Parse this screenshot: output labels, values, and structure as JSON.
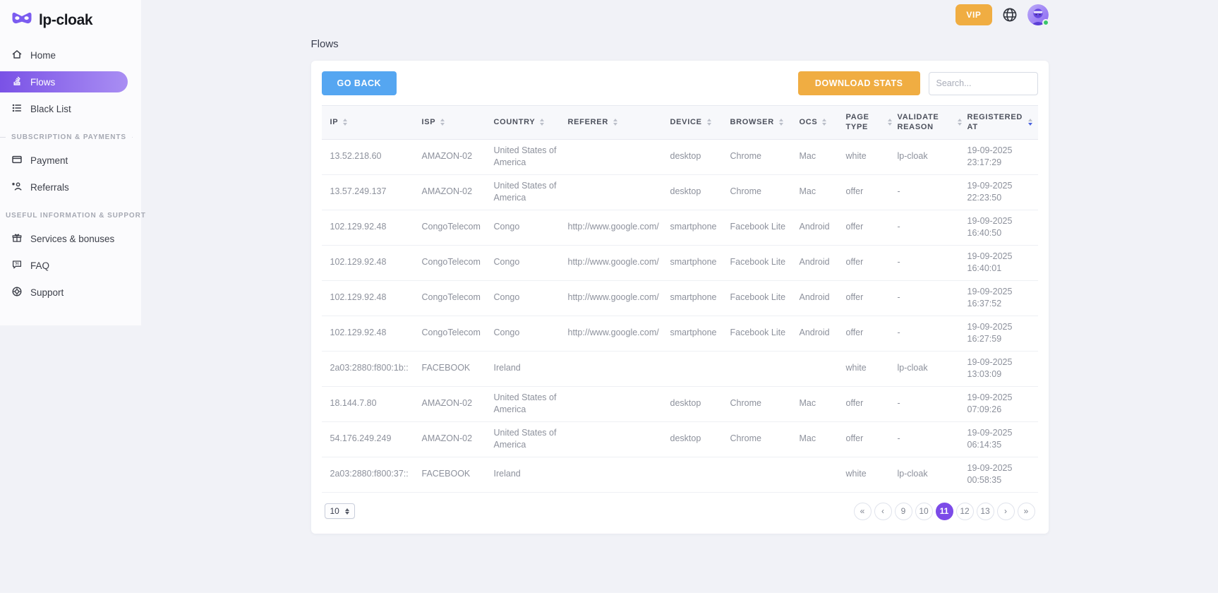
{
  "app": {
    "name": "lp-cloak"
  },
  "topbar": {
    "vip_label": "VIP",
    "avatar_status": "online"
  },
  "sidebar": {
    "items": [
      {
        "label": "Home",
        "icon": "home-icon",
        "active": false
      },
      {
        "label": "Flows",
        "icon": "flows-stack-icon",
        "active": true
      },
      {
        "label": "Black List",
        "icon": "black-list-icon",
        "active": false
      }
    ],
    "sections": [
      {
        "title": "SUBSCRIPTION & PAYMENTS",
        "items": [
          {
            "label": "Payment",
            "icon": "payment-card-icon"
          },
          {
            "label": "Referrals",
            "icon": "referrals-person-icon"
          }
        ]
      },
      {
        "title": "USEFUL INFORMATION & SUPPORT",
        "items": [
          {
            "label": "Services & bonuses",
            "icon": "gift-icon"
          },
          {
            "label": "FAQ",
            "icon": "faq-bubble-icon"
          },
          {
            "label": "Support",
            "icon": "lifebuoy-icon"
          }
        ]
      }
    ]
  },
  "page": {
    "title": "Flows"
  },
  "toolbar": {
    "go_back_label": "GO BACK",
    "download_stats_label": "DOWNLOAD STATS",
    "search_placeholder": "Search..."
  },
  "table": {
    "columns": [
      {
        "key": "ip",
        "label": "IP",
        "sort": "none"
      },
      {
        "key": "isp",
        "label": "ISP",
        "sort": "none"
      },
      {
        "key": "country",
        "label": "COUNTRY",
        "sort": "none"
      },
      {
        "key": "referer",
        "label": "REFERER",
        "sort": "none"
      },
      {
        "key": "device",
        "label": "DEVICE",
        "sort": "none"
      },
      {
        "key": "browser",
        "label": "BROWSER",
        "sort": "none"
      },
      {
        "key": "ocs",
        "label": "OCS",
        "sort": "none"
      },
      {
        "key": "page_type",
        "label": "PAGE TYPE",
        "sort": "none"
      },
      {
        "key": "validate_reason",
        "label": "VALIDATE REASON",
        "sort": "none"
      },
      {
        "key": "registered_at",
        "label": "REGISTERED AT",
        "sort": "desc"
      }
    ],
    "rows": [
      {
        "ip": "13.52.218.60",
        "isp": "AMAZON-02",
        "country": "United States of America",
        "referer": "",
        "device": "desktop",
        "browser": "Chrome",
        "ocs": "Mac",
        "page_type": "white",
        "validate_reason": "lp-cloak",
        "date": "19-09-2025",
        "time": "23:17:29"
      },
      {
        "ip": "13.57.249.137",
        "isp": "AMAZON-02",
        "country": "United States of America",
        "referer": "",
        "device": "desktop",
        "browser": "Chrome",
        "ocs": "Mac",
        "page_type": "offer",
        "validate_reason": "-",
        "date": "19-09-2025",
        "time": "22:23:50"
      },
      {
        "ip": "102.129.92.48",
        "isp": "CongoTelecom",
        "country": "Congo",
        "referer": "http://www.google.com/",
        "device": "smartphone",
        "browser": "Facebook Lite",
        "ocs": "Android",
        "page_type": "offer",
        "validate_reason": "-",
        "date": "19-09-2025",
        "time": "16:40:50"
      },
      {
        "ip": "102.129.92.48",
        "isp": "CongoTelecom",
        "country": "Congo",
        "referer": "http://www.google.com/",
        "device": "smartphone",
        "browser": "Facebook Lite",
        "ocs": "Android",
        "page_type": "offer",
        "validate_reason": "-",
        "date": "19-09-2025",
        "time": "16:40:01"
      },
      {
        "ip": "102.129.92.48",
        "isp": "CongoTelecom",
        "country": "Congo",
        "referer": "http://www.google.com/",
        "device": "smartphone",
        "browser": "Facebook Lite",
        "ocs": "Android",
        "page_type": "offer",
        "validate_reason": "-",
        "date": "19-09-2025",
        "time": "16:37:52"
      },
      {
        "ip": "102.129.92.48",
        "isp": "CongoTelecom",
        "country": "Congo",
        "referer": "http://www.google.com/",
        "device": "smartphone",
        "browser": "Facebook Lite",
        "ocs": "Android",
        "page_type": "offer",
        "validate_reason": "-",
        "date": "19-09-2025",
        "time": "16:27:59"
      },
      {
        "ip": "2a03:2880:f800:1b::",
        "isp": "FACEBOOK",
        "country": "Ireland",
        "referer": "",
        "device": "",
        "browser": "",
        "ocs": "",
        "page_type": "white",
        "validate_reason": "lp-cloak",
        "date": "19-09-2025",
        "time": "13:03:09"
      },
      {
        "ip": "18.144.7.80",
        "isp": "AMAZON-02",
        "country": "United States of America",
        "referer": "",
        "device": "desktop",
        "browser": "Chrome",
        "ocs": "Mac",
        "page_type": "offer",
        "validate_reason": "-",
        "date": "19-09-2025",
        "time": "07:09:26"
      },
      {
        "ip": "54.176.249.249",
        "isp": "AMAZON-02",
        "country": "United States of America",
        "referer": "",
        "device": "desktop",
        "browser": "Chrome",
        "ocs": "Mac",
        "page_type": "offer",
        "validate_reason": "-",
        "date": "19-09-2025",
        "time": "06:14:35"
      },
      {
        "ip": "2a03:2880:f800:37::",
        "isp": "FACEBOOK",
        "country": "Ireland",
        "referer": "",
        "device": "",
        "browser": "",
        "ocs": "",
        "page_type": "white",
        "validate_reason": "lp-cloak",
        "date": "19-09-2025",
        "time": "00:58:35"
      }
    ]
  },
  "pagination": {
    "page_size": "10",
    "active_page": "11",
    "items": [
      {
        "label": "«",
        "name": "first"
      },
      {
        "label": "‹",
        "name": "prev"
      },
      {
        "label": "9"
      },
      {
        "label": "10"
      },
      {
        "label": "11",
        "active": true
      },
      {
        "label": "12"
      },
      {
        "label": "13"
      },
      {
        "label": "›",
        "name": "next"
      },
      {
        "label": "»",
        "name": "last"
      }
    ]
  },
  "colors": {
    "accent_purple": "#7c4be8",
    "button_blue": "#55a6f1",
    "button_orange": "#f0ad42",
    "active_sort_blue": "#4a63e0",
    "online_green": "#39c66a",
    "page_background": "#f1f2f7"
  }
}
